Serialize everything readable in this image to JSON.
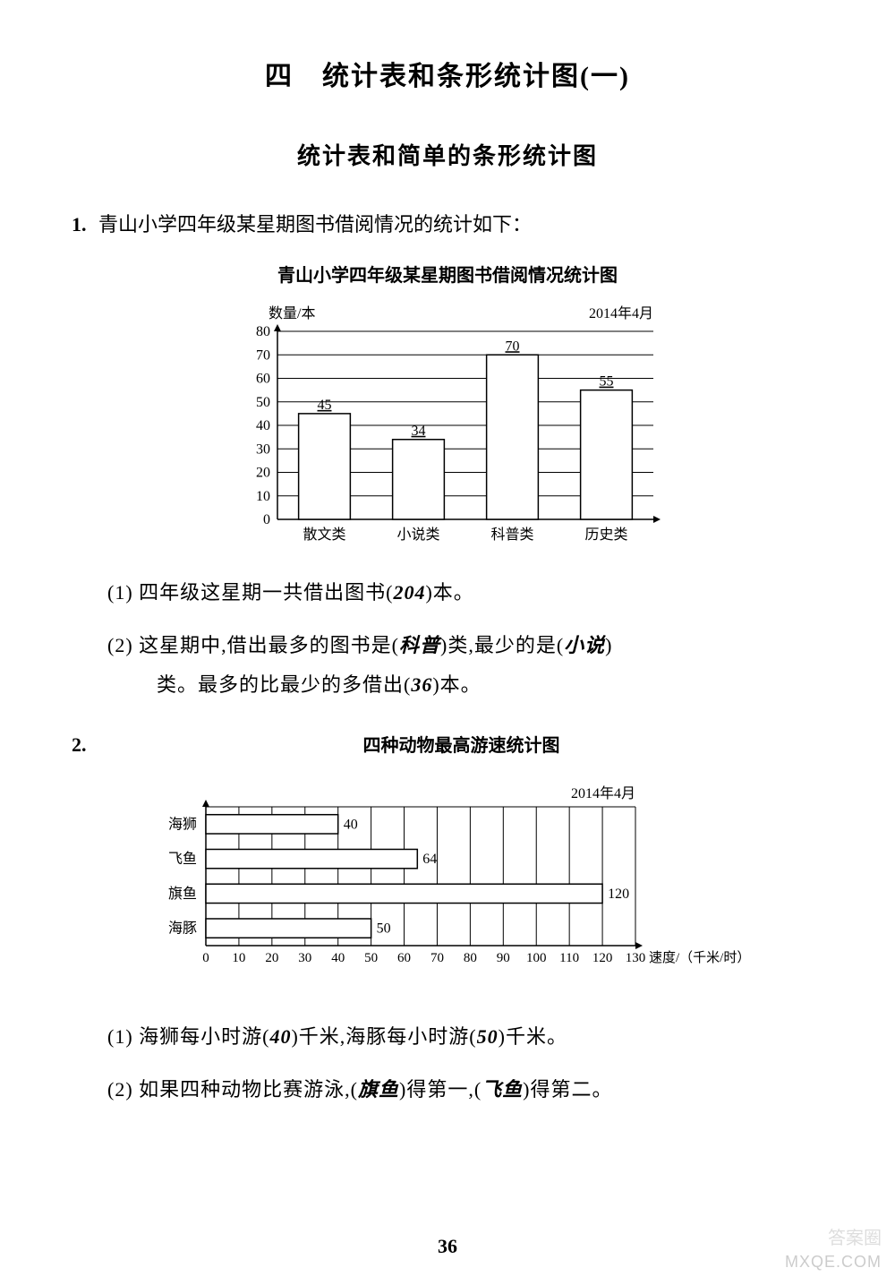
{
  "chapter_title": "四　统计表和条形统计图(一)",
  "section_title": "统计表和简单的条形统计图",
  "q1": {
    "number": "1.",
    "text": "青山小学四年级某星期图书借阅情况的统计如下：",
    "chart_title": "青山小学四年级某星期图书借阅情况统计图",
    "chart": {
      "type": "bar",
      "y_axis_label": "数量/本",
      "date_label": "2014年4月",
      "ylim": [
        0,
        80
      ],
      "ytick_step": 10,
      "yticks": [
        "0",
        "10",
        "20",
        "30",
        "40",
        "50",
        "60",
        "70",
        "80"
      ],
      "categories": [
        "散文类",
        "小说类",
        "科普类",
        "历史类"
      ],
      "values": [
        45,
        34,
        70,
        55
      ],
      "bar_color": "#ffffff",
      "bar_border": "#000000",
      "grid_color": "#000000",
      "background": "#ffffff",
      "bar_width_ratio": 0.55,
      "label_fontsize": 16
    },
    "sub1_prefix": "(1) 四年级这星期一共借出图书(",
    "sub1_answer": "204",
    "sub1_suffix": ")本。",
    "sub2_line1_a": "(2) 这星期中,借出最多的图书是(",
    "sub2_ans1": "科普",
    "sub2_line1_b": ")类,最少的是(",
    "sub2_ans2": "小说",
    "sub2_line1_c": ")",
    "sub2_line2_a": "类。最多的比最少的多借出(",
    "sub2_ans3": "36",
    "sub2_line2_b": ")本。"
  },
  "q2": {
    "number": "2.",
    "chart_title": "四种动物最高游速统计图",
    "chart": {
      "type": "horizontal_bar",
      "date_label": "2014年4月",
      "x_axis_label": "速度/（千米/时）",
      "xlim": [
        0,
        130
      ],
      "xtick_step": 10,
      "xticks": [
        "0",
        "10",
        "20",
        "30",
        "40",
        "50",
        "60",
        "70",
        "80",
        "90",
        "100",
        "110",
        "120",
        "130"
      ],
      "categories": [
        "海狮",
        "飞鱼",
        "旗鱼",
        "海豚"
      ],
      "values": [
        40,
        64,
        120,
        50
      ],
      "bar_color": "#ffffff",
      "bar_border": "#000000",
      "grid_color": "#000000",
      "background": "#ffffff",
      "bar_height_ratio": 0.55,
      "label_fontsize": 16
    },
    "sub1_a": "(1) 海狮每小时游(",
    "sub1_ans1": "40",
    "sub1_b": ")千米,海豚每小时游(",
    "sub1_ans2": "50",
    "sub1_c": ")千米。",
    "sub2_a": "(2) 如果四种动物比赛游泳,(",
    "sub2_ans1": "旗鱼",
    "sub2_b": ")得第一,(",
    "sub2_ans2": "飞鱼",
    "sub2_c": ")得第二。"
  },
  "page_number": "36",
  "watermark_cn": "答案圈",
  "watermark": "MXQE.COM"
}
